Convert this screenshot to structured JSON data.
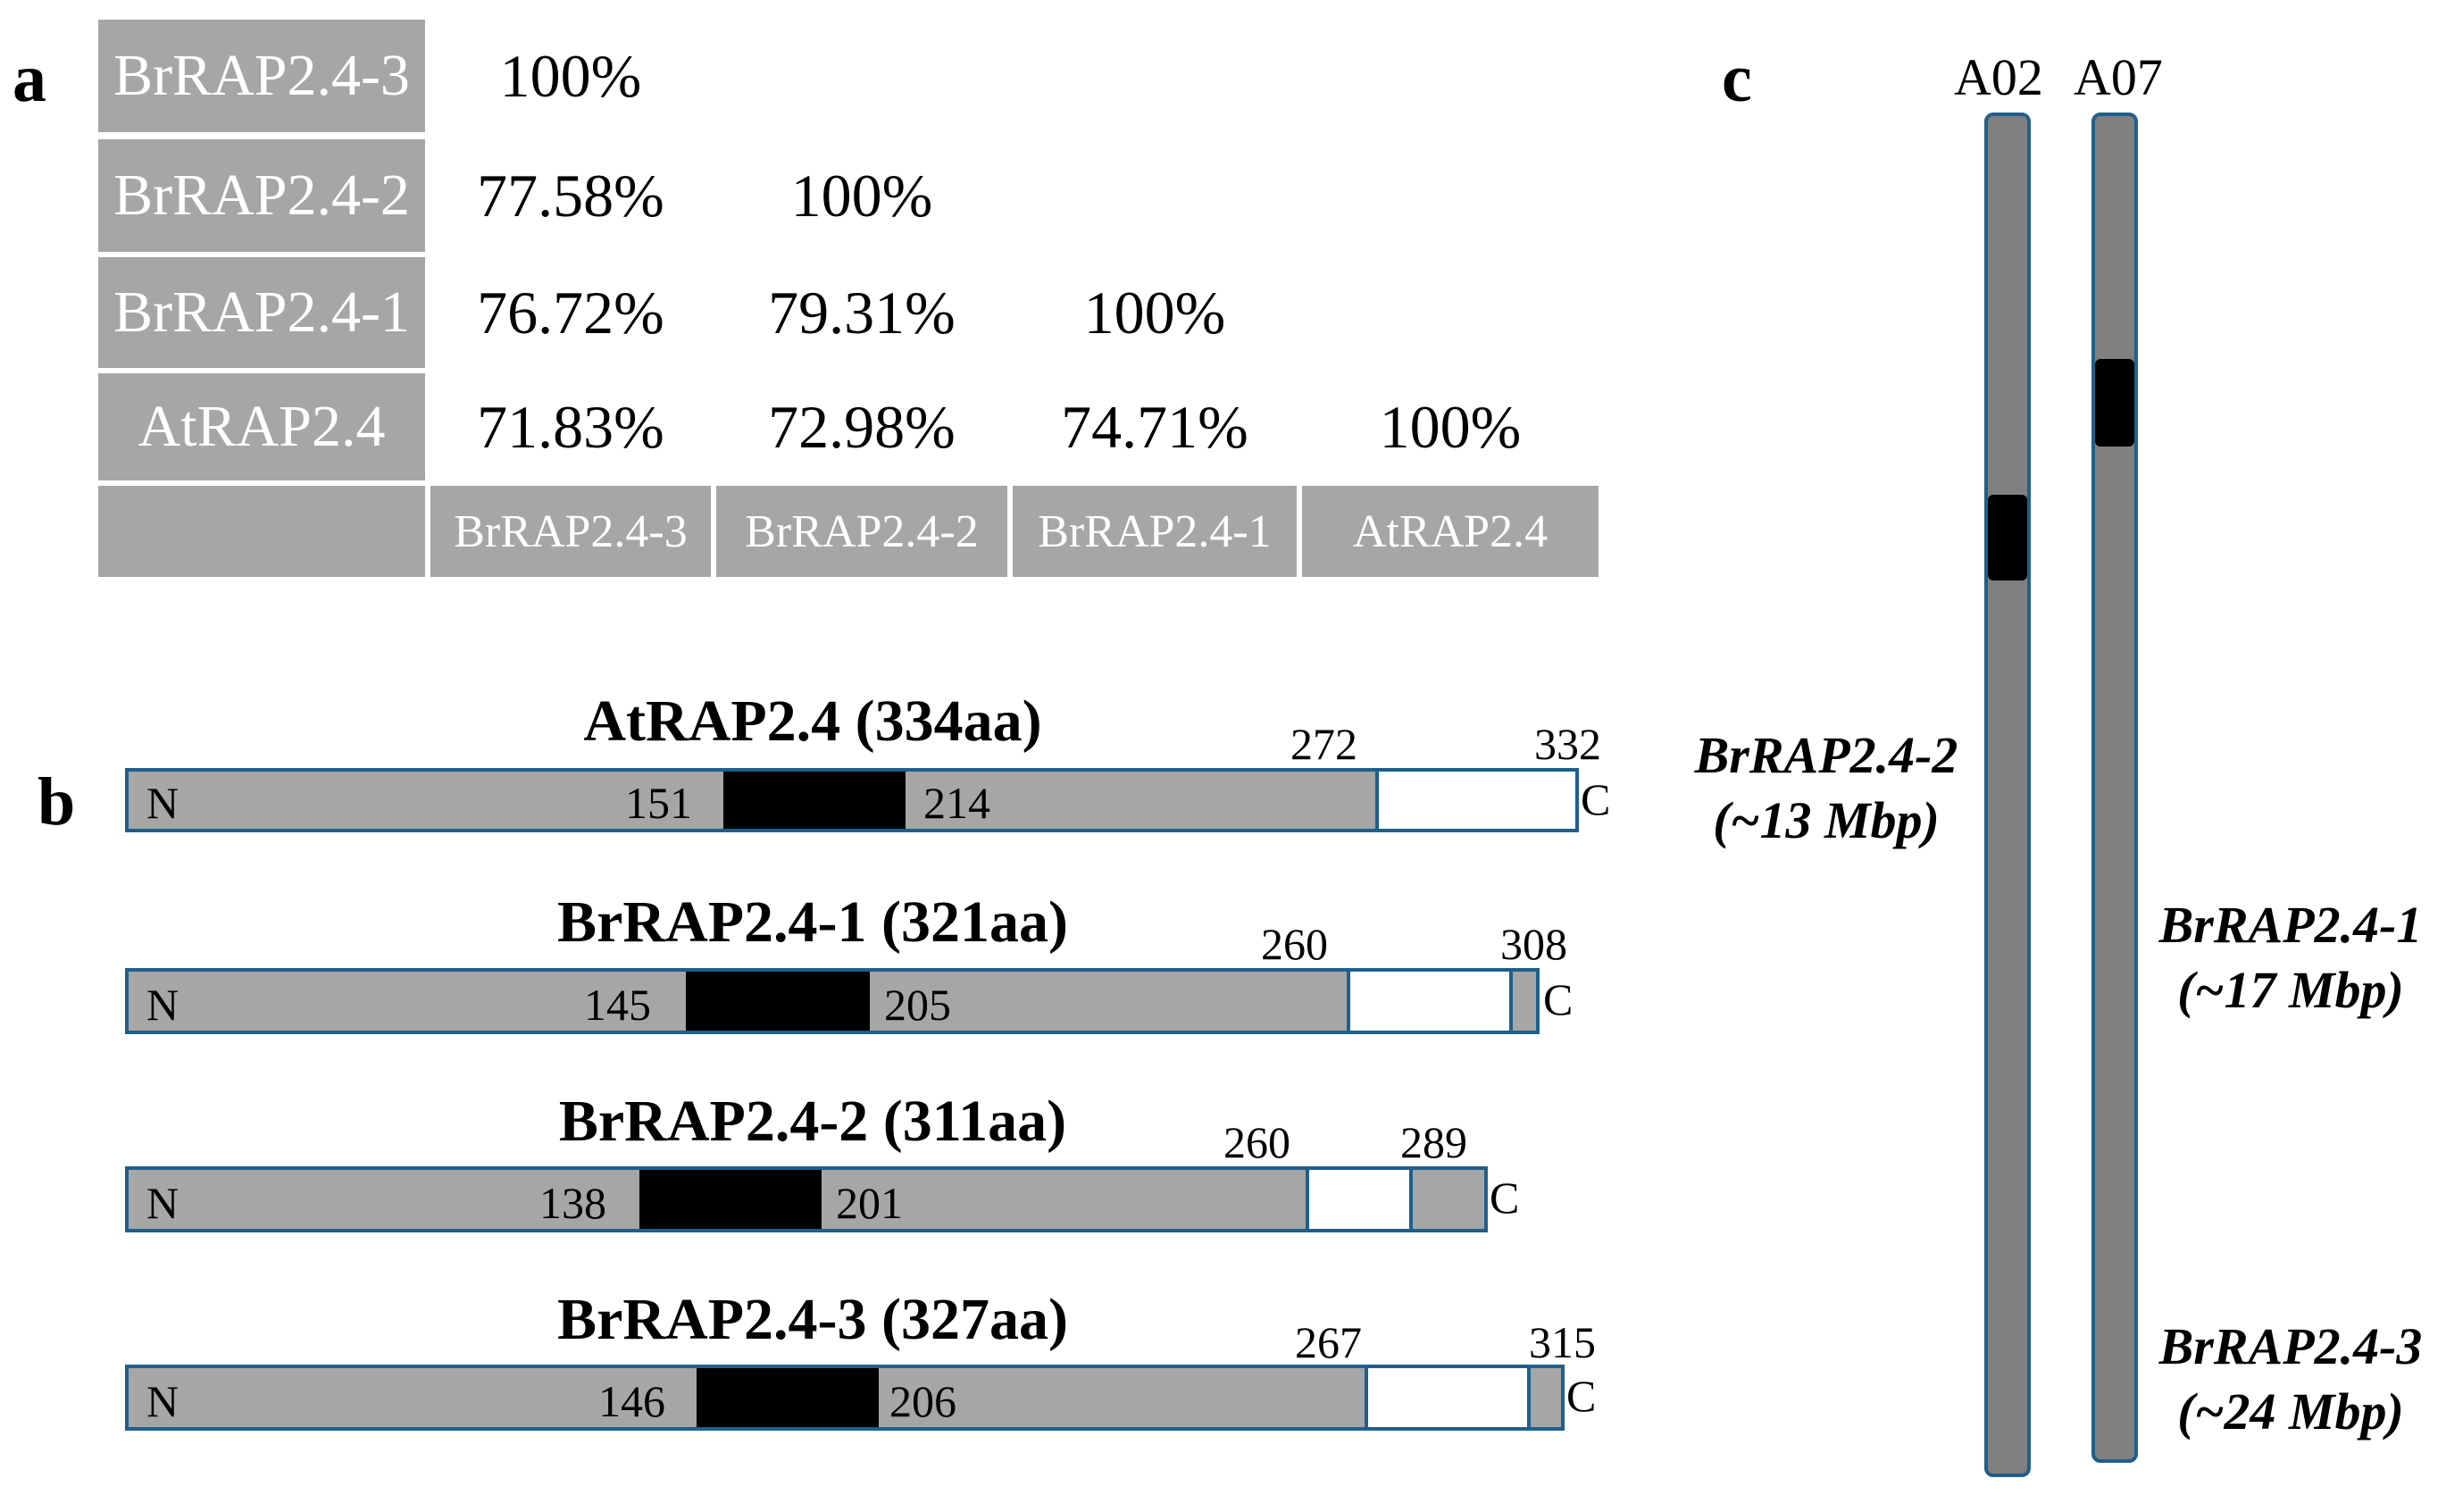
{
  "panels": {
    "a": "a",
    "b": "b",
    "c": "c"
  },
  "identity_matrix": {
    "row_headers": [
      "BrRAP2.4-3",
      "BrRAP2.4-2",
      "BrRAP2.4-1",
      "AtRAP2.4"
    ],
    "col_headers": [
      "BrRAP2.4-3",
      "BrRAP2.4-2",
      "BrRAP2.4-1",
      "AtRAP2.4"
    ],
    "values": [
      [
        "100%"
      ],
      [
        "77.58%",
        "100%"
      ],
      [
        "76.72%",
        "79.31%",
        "100%"
      ],
      [
        "71.83%",
        "72.98%",
        "74.71%",
        "100%"
      ]
    ]
  },
  "proteins": [
    {
      "title": "AtRAP2.4 (334aa)",
      "n": "N",
      "c": "C",
      "domain_start": "151",
      "domain_end": "214",
      "white_start": "272",
      "white_end": "332"
    },
    {
      "title": "BrRAP2.4-1 (321aa)",
      "n": "N",
      "c": "C",
      "domain_start": "145",
      "domain_end": "205",
      "white_start": "260",
      "white_end": "308"
    },
    {
      "title": "BrRAP2.4-2 (311aa)",
      "n": "N",
      "c": "C",
      "domain_start": "138",
      "domain_end": "201",
      "white_start": "260",
      "white_end": "289"
    },
    {
      "title": "BrRAP2.4-3 (327aa)",
      "n": "N",
      "c": "C",
      "domain_start": "146",
      "domain_end": "206",
      "white_start": "267",
      "white_end": "315"
    }
  ],
  "chromosomes": [
    {
      "name": "A02"
    },
    {
      "name": "A07"
    }
  ],
  "gene_locations": [
    {
      "gene": "BrRAP2.4-2",
      "position": "(~13 Mbp)"
    },
    {
      "gene": "BrRAP2.4-1",
      "position": "(~17 Mbp)"
    },
    {
      "gene": "BrRAP2.4-3",
      "position": "(~24 Mbp)"
    }
  ],
  "colors": {
    "cell": "#a6a6a6",
    "outline": "#1f5f8b",
    "chromosome": "#808080",
    "domain": "#000000"
  }
}
